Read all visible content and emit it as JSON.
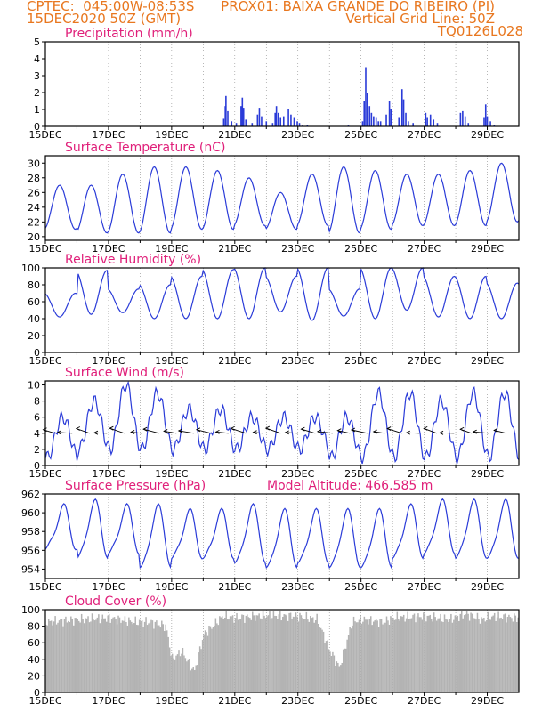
{
  "header": {
    "line1_left": "CPTEC:  045:00W-08:53S",
    "line1_right": "PROX01: BAIXA GRANDE DO RIBEIRO (PI)",
    "line2_left": "15DEC2020 50Z (GMT)",
    "line2_right": "Vertical Grid Line: 50Z",
    "line3_right": "TQ0126L028"
  },
  "colors": {
    "header": "#e8771f",
    "panel_title": "#e0207a",
    "series": "#2a3bd8",
    "cloud": "#b3b3b3",
    "grid": "#888888"
  },
  "x_tick_labels": [
    "15DEC",
    "17DEC",
    "19DEC",
    "21DEC",
    "23DEC",
    "25DEC",
    "27DEC",
    "29DEC"
  ],
  "chart_data": [
    {
      "type": "bar",
      "title": "Precipitation (mm/h)",
      "ylim": [
        0,
        5
      ],
      "yticks": [
        "0",
        "1",
        "2",
        "3",
        "4",
        "5"
      ],
      "x_days": [
        15,
        30
      ],
      "bars": [
        [
          20.65,
          0.45
        ],
        [
          20.7,
          1.2
        ],
        [
          20.72,
          1.8
        ],
        [
          20.78,
          0.9
        ],
        [
          20.9,
          0.3
        ],
        [
          21.05,
          0.2
        ],
        [
          21.2,
          1.2
        ],
        [
          21.24,
          1.7
        ],
        [
          21.28,
          1.1
        ],
        [
          21.35,
          0.4
        ],
        [
          21.55,
          0.2
        ],
        [
          21.72,
          0.7
        ],
        [
          21.78,
          1.1
        ],
        [
          21.85,
          0.6
        ],
        [
          22.0,
          0.3
        ],
        [
          22.2,
          0.2
        ],
        [
          22.28,
          0.8
        ],
        [
          22.32,
          1.2
        ],
        [
          22.38,
          0.8
        ],
        [
          22.45,
          0.5
        ],
        [
          22.55,
          0.6
        ],
        [
          22.7,
          1.0
        ],
        [
          22.78,
          0.7
        ],
        [
          22.88,
          0.5
        ],
        [
          22.98,
          0.3
        ],
        [
          23.05,
          0.2
        ],
        [
          23.15,
          0.1
        ],
        [
          23.3,
          0.1
        ],
        [
          24.6,
          0.05
        ],
        [
          25.05,
          0.3
        ],
        [
          25.1,
          1.5
        ],
        [
          25.15,
          3.5
        ],
        [
          25.2,
          2.0
        ],
        [
          25.27,
          1.2
        ],
        [
          25.33,
          0.8
        ],
        [
          25.4,
          0.6
        ],
        [
          25.48,
          0.5
        ],
        [
          25.55,
          0.3
        ],
        [
          25.62,
          0.3
        ],
        [
          25.8,
          0.7
        ],
        [
          25.9,
          1.5
        ],
        [
          25.95,
          1.0
        ],
        [
          26.2,
          0.5
        ],
        [
          26.3,
          2.2
        ],
        [
          26.35,
          1.6
        ],
        [
          26.42,
          0.8
        ],
        [
          26.5,
          0.3
        ],
        [
          26.65,
          0.2
        ],
        [
          27.05,
          0.8
        ],
        [
          27.1,
          0.5
        ],
        [
          27.2,
          0.7
        ],
        [
          27.3,
          0.4
        ],
        [
          27.42,
          0.2
        ],
        [
          28.15,
          0.8
        ],
        [
          28.22,
          0.9
        ],
        [
          28.3,
          0.6
        ],
        [
          28.4,
          0.2
        ],
        [
          28.9,
          0.5
        ],
        [
          28.95,
          1.3
        ],
        [
          29.0,
          0.6
        ],
        [
          29.1,
          0.3
        ],
        [
          29.22,
          0.1
        ]
      ]
    },
    {
      "type": "line",
      "title": "Surface Temperature (nC)",
      "ylim": [
        19.5,
        31
      ],
      "yticks": [
        "20",
        "22",
        "24",
        "26",
        "28",
        "30"
      ],
      "x_days": [
        15,
        30
      ],
      "tmin": [
        21,
        20.5,
        20.5,
        20.5,
        21,
        21,
        21.5,
        21,
        21.5,
        20.5,
        21,
        21.5,
        21.5,
        21.5,
        22
      ],
      "tmax": [
        27,
        27,
        28.5,
        29.5,
        29.5,
        29,
        28,
        26,
        28.5,
        29.5,
        29,
        28.5,
        28.5,
        29,
        30
      ]
    },
    {
      "type": "line",
      "title": "Relative Humidity (%)",
      "ylim": [
        0,
        100
      ],
      "yticks": [
        "0",
        "20",
        "40",
        "60",
        "80",
        "100"
      ],
      "x_days": [
        15,
        30
      ],
      "rhmax": [
        70,
        97,
        75,
        80,
        90,
        98,
        100,
        90,
        100,
        75,
        100,
        100,
        90,
        90,
        82
      ],
      "rhmin": [
        42,
        45,
        47,
        40,
        40,
        40,
        40,
        48,
        38,
        43,
        40,
        50,
        42,
        40,
        40
      ]
    },
    {
      "type": "line",
      "title": "Surface Wind (m/s)",
      "ylim": [
        0,
        10.5
      ],
      "yticks": [
        "0",
        "2",
        "4",
        "6",
        "8",
        "10"
      ],
      "x_days": [
        15,
        30
      ],
      "wmin": [
        1,
        2,
        2,
        2,
        2,
        2,
        2,
        2,
        2,
        1,
        1,
        1,
        1,
        1,
        1
      ],
      "wmax": [
        6,
        8,
        10,
        9,
        7,
        7,
        6,
        6,
        6,
        6,
        9,
        9,
        8,
        9,
        9
      ]
    },
    {
      "type": "line",
      "title": "Surface Pressure (hPa)",
      "annotation": "Model Altitude: 466.585 m",
      "ylim": [
        953,
        962
      ],
      "yticks": [
        "954",
        "956",
        "958",
        "960",
        "962"
      ],
      "x_days": [
        15,
        30
      ],
      "pmax": [
        960.5,
        961,
        960.5,
        960.5,
        960,
        960,
        960.5,
        960,
        960,
        960,
        960,
        960.5,
        961,
        961,
        961
      ],
      "pmin": [
        956,
        955,
        955.5,
        954,
        955,
        955,
        954.5,
        954,
        954.5,
        954,
        954,
        955,
        955.5,
        955,
        955
      ]
    },
    {
      "type": "area",
      "title": "Cloud Cover (%)",
      "ylim": [
        0,
        100
      ],
      "yticks": [
        "0",
        "20",
        "40",
        "60",
        "80",
        "100"
      ],
      "x_days": [
        15,
        30
      ],
      "base": [
        [
          15,
          85
        ],
        [
          16,
          88
        ],
        [
          17,
          90
        ],
        [
          17.8,
          85
        ],
        [
          18.3,
          85
        ],
        [
          18.8,
          80
        ],
        [
          19,
          40
        ],
        [
          19.3,
          50
        ],
        [
          19.7,
          25
        ],
        [
          20,
          70
        ],
        [
          20.6,
          92
        ],
        [
          21,
          90
        ],
        [
          22,
          93
        ],
        [
          23,
          92
        ],
        [
          23.6,
          88
        ],
        [
          24,
          50
        ],
        [
          24.3,
          30
        ],
        [
          24.7,
          85
        ],
        [
          25,
          88
        ],
        [
          25.7,
          85
        ],
        [
          26,
          90
        ],
        [
          27,
          92
        ],
        [
          27.8,
          88
        ],
        [
          28.3,
          95
        ],
        [
          28.8,
          88
        ],
        [
          29.2,
          92
        ],
        [
          30,
          90
        ]
      ]
    }
  ]
}
